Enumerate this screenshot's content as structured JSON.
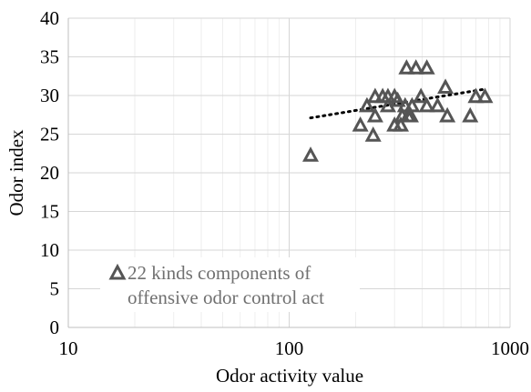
{
  "chart_data": {
    "type": "scatter",
    "title": "",
    "xlabel": "Odor activity value",
    "ylabel": "Odor index",
    "x_scale": "log",
    "xlim": [
      10,
      1000
    ],
    "ylim": [
      0,
      40
    ],
    "x_ticks": [
      10,
      100,
      1000
    ],
    "x_tick_labels": [
      "10",
      "100",
      "1000"
    ],
    "y_ticks": [
      0,
      5,
      10,
      15,
      20,
      25,
      30,
      35,
      40
    ],
    "y_tick_labels": [
      "0",
      "5",
      "10",
      "15",
      "20",
      "25",
      "30",
      "35",
      "40"
    ],
    "grid": true,
    "legend_position": "bottom-left",
    "series": [
      {
        "name": "22 kinds components of offensive odor control act",
        "marker": "triangle-open",
        "color": "#555555",
        "points": [
          {
            "x": 125,
            "y": 22.2
          },
          {
            "x": 210,
            "y": 26.1
          },
          {
            "x": 225,
            "y": 28.6
          },
          {
            "x": 240,
            "y": 24.8
          },
          {
            "x": 245,
            "y": 27.3
          },
          {
            "x": 245,
            "y": 29.8
          },
          {
            "x": 265,
            "y": 29.8
          },
          {
            "x": 280,
            "y": 28.6
          },
          {
            "x": 280,
            "y": 29.8
          },
          {
            "x": 300,
            "y": 26.1
          },
          {
            "x": 300,
            "y": 29.8
          },
          {
            "x": 310,
            "y": 29.3
          },
          {
            "x": 320,
            "y": 26.1
          },
          {
            "x": 325,
            "y": 27.3
          },
          {
            "x": 335,
            "y": 28.6
          },
          {
            "x": 340,
            "y": 33.5
          },
          {
            "x": 345,
            "y": 27.3
          },
          {
            "x": 355,
            "y": 27.3
          },
          {
            "x": 360,
            "y": 28.6
          },
          {
            "x": 375,
            "y": 33.5
          },
          {
            "x": 395,
            "y": 29.8
          },
          {
            "x": 420,
            "y": 28.6
          },
          {
            "x": 420,
            "y": 33.5
          },
          {
            "x": 470,
            "y": 28.6
          },
          {
            "x": 510,
            "y": 31.0
          },
          {
            "x": 520,
            "y": 27.3
          },
          {
            "x": 660,
            "y": 27.3
          },
          {
            "x": 700,
            "y": 29.8
          },
          {
            "x": 770,
            "y": 29.8
          }
        ]
      }
    ],
    "trendline": {
      "style": "dotted",
      "color": "#000000",
      "x_range": [
        125,
        760
      ],
      "y_range": [
        27.1,
        30.8
      ]
    },
    "legend": {
      "line1": "22 kinds components of",
      "line2": "offensive odor control act"
    }
  }
}
